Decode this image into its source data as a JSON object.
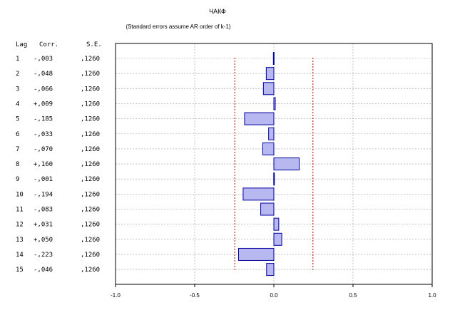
{
  "chart_data": {
    "type": "bar",
    "orientation": "horizontal",
    "title": "ЧАКФ",
    "subtitle": "(Standard errors assume AR order of k-1)",
    "table_headers": {
      "lag": "Lag",
      "corr": "Corr.",
      "se": "S.E."
    },
    "lags": [
      "1",
      "2",
      "3",
      "4",
      "5",
      "6",
      "7",
      "8",
      "9",
      "10",
      "11",
      "12",
      "13",
      "14",
      "15"
    ],
    "corr_labels": [
      "-,003",
      "-,048",
      "-,066",
      "+,009",
      "-,185",
      "-,033",
      "-,070",
      "+,160",
      "-,001",
      "-,194",
      "-,083",
      "+,031",
      "+,050",
      "-,223",
      "-,046"
    ],
    "se_labels": [
      ",1260",
      ",1260",
      ",1260",
      ",1260",
      ",1260",
      ",1260",
      ",1260",
      ",1260",
      ",1260",
      ",1260",
      ",1260",
      ",1260",
      ",1260",
      ",1260",
      ",1260"
    ],
    "values": [
      -0.003,
      -0.048,
      -0.066,
      0.009,
      -0.185,
      -0.033,
      -0.07,
      0.16,
      -0.001,
      -0.194,
      -0.083,
      0.031,
      0.05,
      -0.223,
      -0.046
    ],
    "confidence_limit": 0.247,
    "xlim": [
      -1.0,
      1.0
    ],
    "x_ticks": [
      -1.0,
      -0.5,
      0.0,
      0.5,
      1.0
    ],
    "x_tick_labels": [
      "-1.0",
      "-0.5",
      "0.0",
      "0.5",
      "1.0"
    ],
    "grid": true,
    "colors": {
      "bar_fill": "#b8b8f0",
      "bar_stroke": "#0000a0",
      "confidence_line": "#c00000",
      "grid": "#a0a0a0",
      "frame": "#000000"
    }
  }
}
